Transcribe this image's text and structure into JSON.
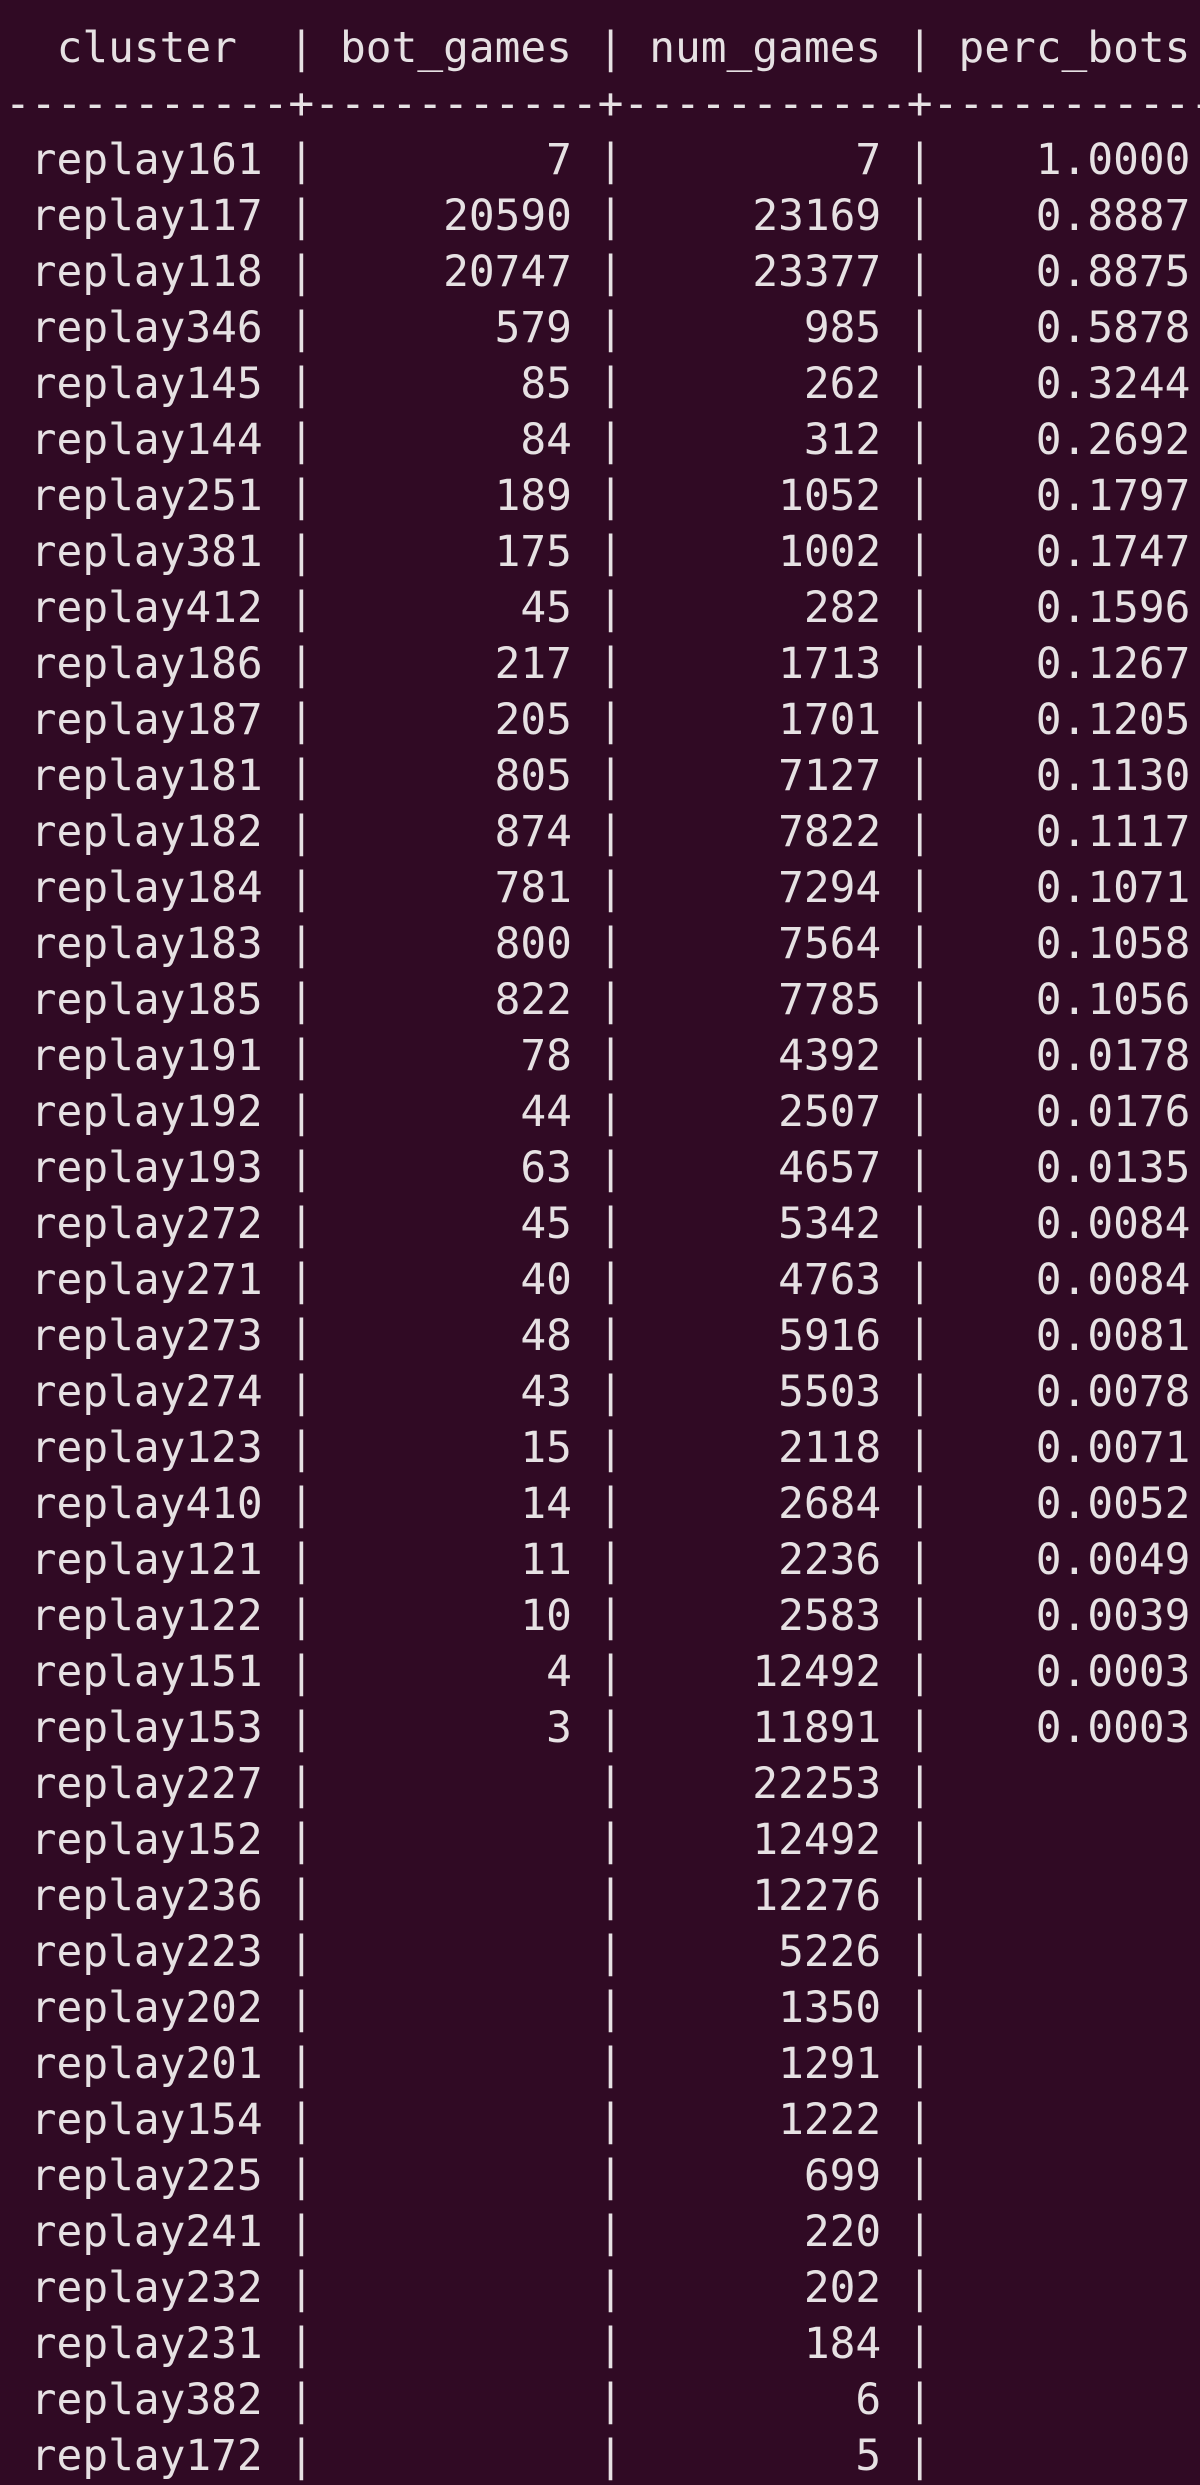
{
  "colors": {
    "background": "#300a24",
    "text": "#e6e1e3"
  },
  "table": {
    "columns": [
      "cluster",
      "bot_games",
      "num_games",
      "perc_bots"
    ],
    "rows": [
      [
        "replay161",
        "7",
        "7",
        "1.0000"
      ],
      [
        "replay117",
        "20590",
        "23169",
        "0.8887"
      ],
      [
        "replay118",
        "20747",
        "23377",
        "0.8875"
      ],
      [
        "replay346",
        "579",
        "985",
        "0.5878"
      ],
      [
        "replay145",
        "85",
        "262",
        "0.3244"
      ],
      [
        "replay144",
        "84",
        "312",
        "0.2692"
      ],
      [
        "replay251",
        "189",
        "1052",
        "0.1797"
      ],
      [
        "replay381",
        "175",
        "1002",
        "0.1747"
      ],
      [
        "replay412",
        "45",
        "282",
        "0.1596"
      ],
      [
        "replay186",
        "217",
        "1713",
        "0.1267"
      ],
      [
        "replay187",
        "205",
        "1701",
        "0.1205"
      ],
      [
        "replay181",
        "805",
        "7127",
        "0.1130"
      ],
      [
        "replay182",
        "874",
        "7822",
        "0.1117"
      ],
      [
        "replay184",
        "781",
        "7294",
        "0.1071"
      ],
      [
        "replay183",
        "800",
        "7564",
        "0.1058"
      ],
      [
        "replay185",
        "822",
        "7785",
        "0.1056"
      ],
      [
        "replay191",
        "78",
        "4392",
        "0.0178"
      ],
      [
        "replay192",
        "44",
        "2507",
        "0.0176"
      ],
      [
        "replay193",
        "63",
        "4657",
        "0.0135"
      ],
      [
        "replay272",
        "45",
        "5342",
        "0.0084"
      ],
      [
        "replay271",
        "40",
        "4763",
        "0.0084"
      ],
      [
        "replay273",
        "48",
        "5916",
        "0.0081"
      ],
      [
        "replay274",
        "43",
        "5503",
        "0.0078"
      ],
      [
        "replay123",
        "15",
        "2118",
        "0.0071"
      ],
      [
        "replay410",
        "14",
        "2684",
        "0.0052"
      ],
      [
        "replay121",
        "11",
        "2236",
        "0.0049"
      ],
      [
        "replay122",
        "10",
        "2583",
        "0.0039"
      ],
      [
        "replay151",
        "4",
        "12492",
        "0.0003"
      ],
      [
        "replay153",
        "3",
        "11891",
        "0.0003"
      ],
      [
        "replay227",
        "",
        "22253",
        ""
      ],
      [
        "replay152",
        "",
        "12492",
        ""
      ],
      [
        "replay236",
        "",
        "12276",
        ""
      ],
      [
        "replay223",
        "",
        "5226",
        ""
      ],
      [
        "replay202",
        "",
        "1350",
        ""
      ],
      [
        "replay201",
        "",
        "1291",
        ""
      ],
      [
        "replay154",
        "",
        "1222",
        ""
      ],
      [
        "replay225",
        "",
        "699",
        ""
      ],
      [
        "replay241",
        "",
        "220",
        ""
      ],
      [
        "replay232",
        "",
        "202",
        ""
      ],
      [
        "replay231",
        "",
        "184",
        ""
      ],
      [
        "replay382",
        "",
        "6",
        ""
      ],
      [
        "replay172",
        "",
        "5",
        ""
      ]
    ]
  }
}
